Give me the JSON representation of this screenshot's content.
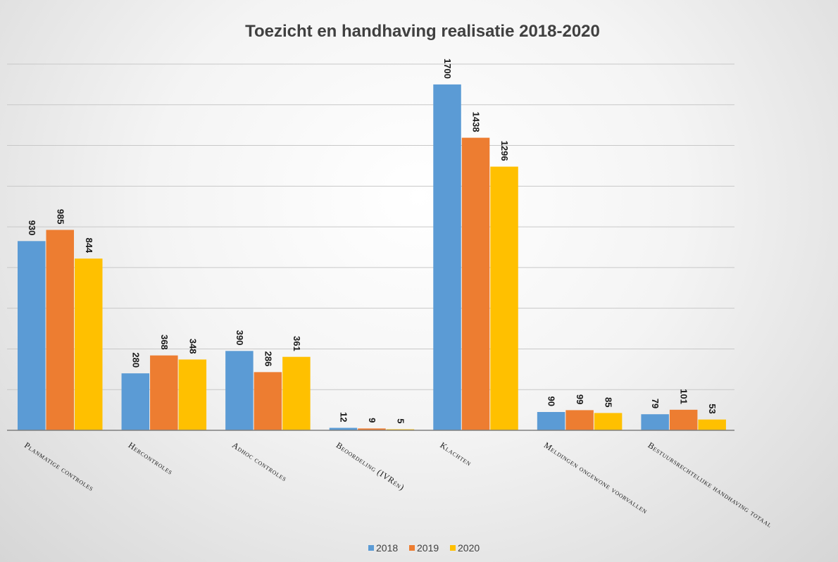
{
  "chart_data": {
    "type": "bar",
    "title": "Toezicht en handhaving realisatie 2018-2020",
    "categories": [
      "Planmatige controles",
      "Hercontroles",
      "Adhoc controles",
      "Beoordeling (IVRén)",
      "Klachten",
      "Meldingen ongewone voorvallen",
      "Bestuursrechtelijke handhaving totaal"
    ],
    "series": [
      {
        "name": "2018",
        "color": "#5B9BD5",
        "values": [
          930,
          280,
          390,
          12,
          1700,
          90,
          79
        ]
      },
      {
        "name": "2019",
        "color": "#ED7D31",
        "values": [
          985,
          368,
          286,
          9,
          1438,
          99,
          101
        ]
      },
      {
        "name": "2020",
        "color": "#FFC000",
        "values": [
          844,
          348,
          361,
          5,
          1296,
          85,
          53
        ]
      }
    ],
    "ylim": [
      0,
      1800
    ],
    "y_gridlines": true,
    "y_tick_labels_visible": false,
    "legend_position": "bottom"
  }
}
